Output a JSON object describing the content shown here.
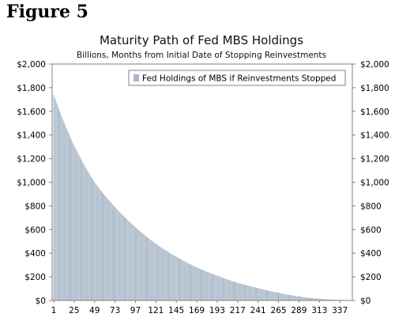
{
  "figure_label": "Figure 5",
  "chart_data": {
    "type": "bar",
    "title": "Maturity Path of Fed MBS Holdings",
    "subtitle": "Billions, Months from Initial Date of Stopping Reinvestments",
    "xlabel": "",
    "ylabel": "",
    "x_start": 1,
    "x_end": 348,
    "x_tick_labels": [
      "1",
      "25",
      "49",
      "73",
      "97",
      "121",
      "145",
      "169",
      "193",
      "217",
      "241",
      "265",
      "289",
      "313",
      "337"
    ],
    "ylim": [
      0,
      2000
    ],
    "y_tick_labels": [
      "$0",
      "$200",
      "$400",
      "$600",
      "$800",
      "$1,000",
      "$1,200",
      "$1,400",
      "$1,600",
      "$1,800",
      "$2,000"
    ],
    "y_tick_labels_right": [
      "$0",
      "$200",
      "$400",
      "$600",
      "$800",
      "$1,000",
      "$1,200",
      "$1,400",
      "$1,600",
      "$1,800",
      "$2,000"
    ],
    "grid": false,
    "legend_position": "top-right",
    "series": [
      {
        "name": "Fed Holdings of MBS if Reinvestments Stopped",
        "color": "#a9b8c8",
        "x": [
          1,
          25,
          49,
          73,
          97,
          121,
          145,
          169,
          193,
          217,
          241,
          265,
          289,
          313,
          337,
          348
        ],
        "values": [
          1740,
          1310,
          1000,
          790,
          620,
          480,
          370,
          280,
          210,
          150,
          105,
          65,
          35,
          15,
          4,
          0
        ]
      }
    ]
  }
}
